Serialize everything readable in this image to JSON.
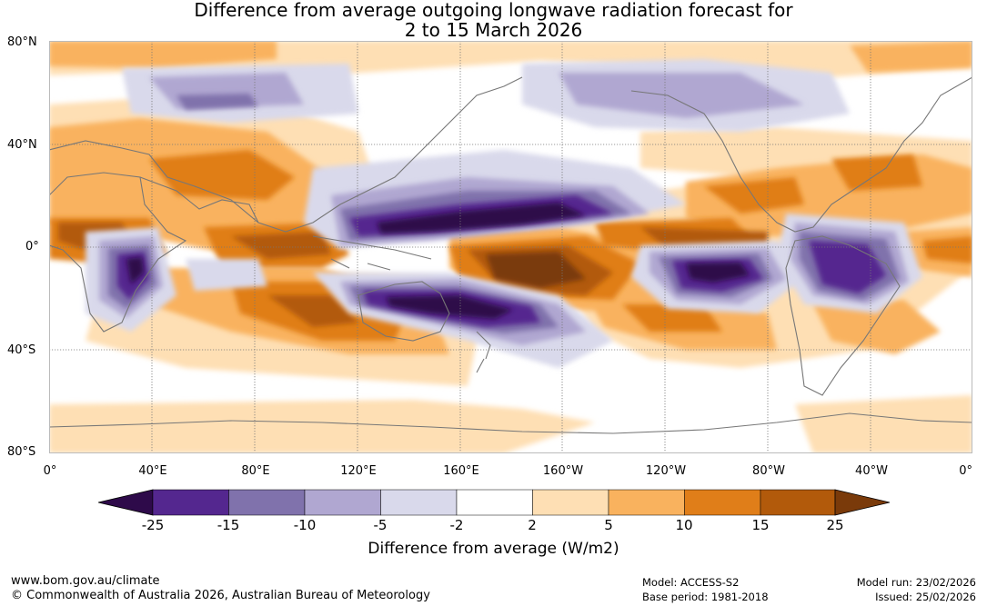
{
  "title": {
    "line1": "Difference from average outgoing longwave radiation forecast for",
    "line2": "2 to 15 March 2026"
  },
  "map": {
    "lat_labels": [
      "80°N",
      "40°N",
      "0°",
      "40°S",
      "80°S"
    ],
    "lon_labels": [
      "0°",
      "40°E",
      "80°E",
      "120°E",
      "160°E",
      "160°W",
      "120°W",
      "80°W",
      "40°W",
      "0°"
    ],
    "colors": {
      "lt25": "#2e0a4a",
      "m25_m15": "#54278f",
      "m15_m10": "#8072ac",
      "m10_m5": "#b0a7d1",
      "m5_m2": "#d9d9eb",
      "m2_2": "#ffffff",
      "p2_5": "#fedfb4",
      "p5_10": "#f9b25e",
      "p10_15": "#e07e19",
      "p15_25": "#b25a0b",
      "gt25": "#7a3a0a",
      "coast": "#777777",
      "grid": "#777777"
    }
  },
  "colorbar": {
    "labels": [
      "-25",
      "-15",
      "-10",
      "-5",
      "-2",
      "2",
      "5",
      "10",
      "15",
      "25"
    ],
    "title": "Difference from average (W/m2)"
  },
  "footer": {
    "website": "www.bom.gov.au/climate",
    "copyright": "© Commonwealth of Australia 2026, Australian Bureau of Meteorology",
    "model": "Model: ACCESS-S2",
    "base_period": "Base period: 1981-2018",
    "model_run": "Model run: 23/02/2026",
    "issued": "Issued: 25/02/2026"
  }
}
